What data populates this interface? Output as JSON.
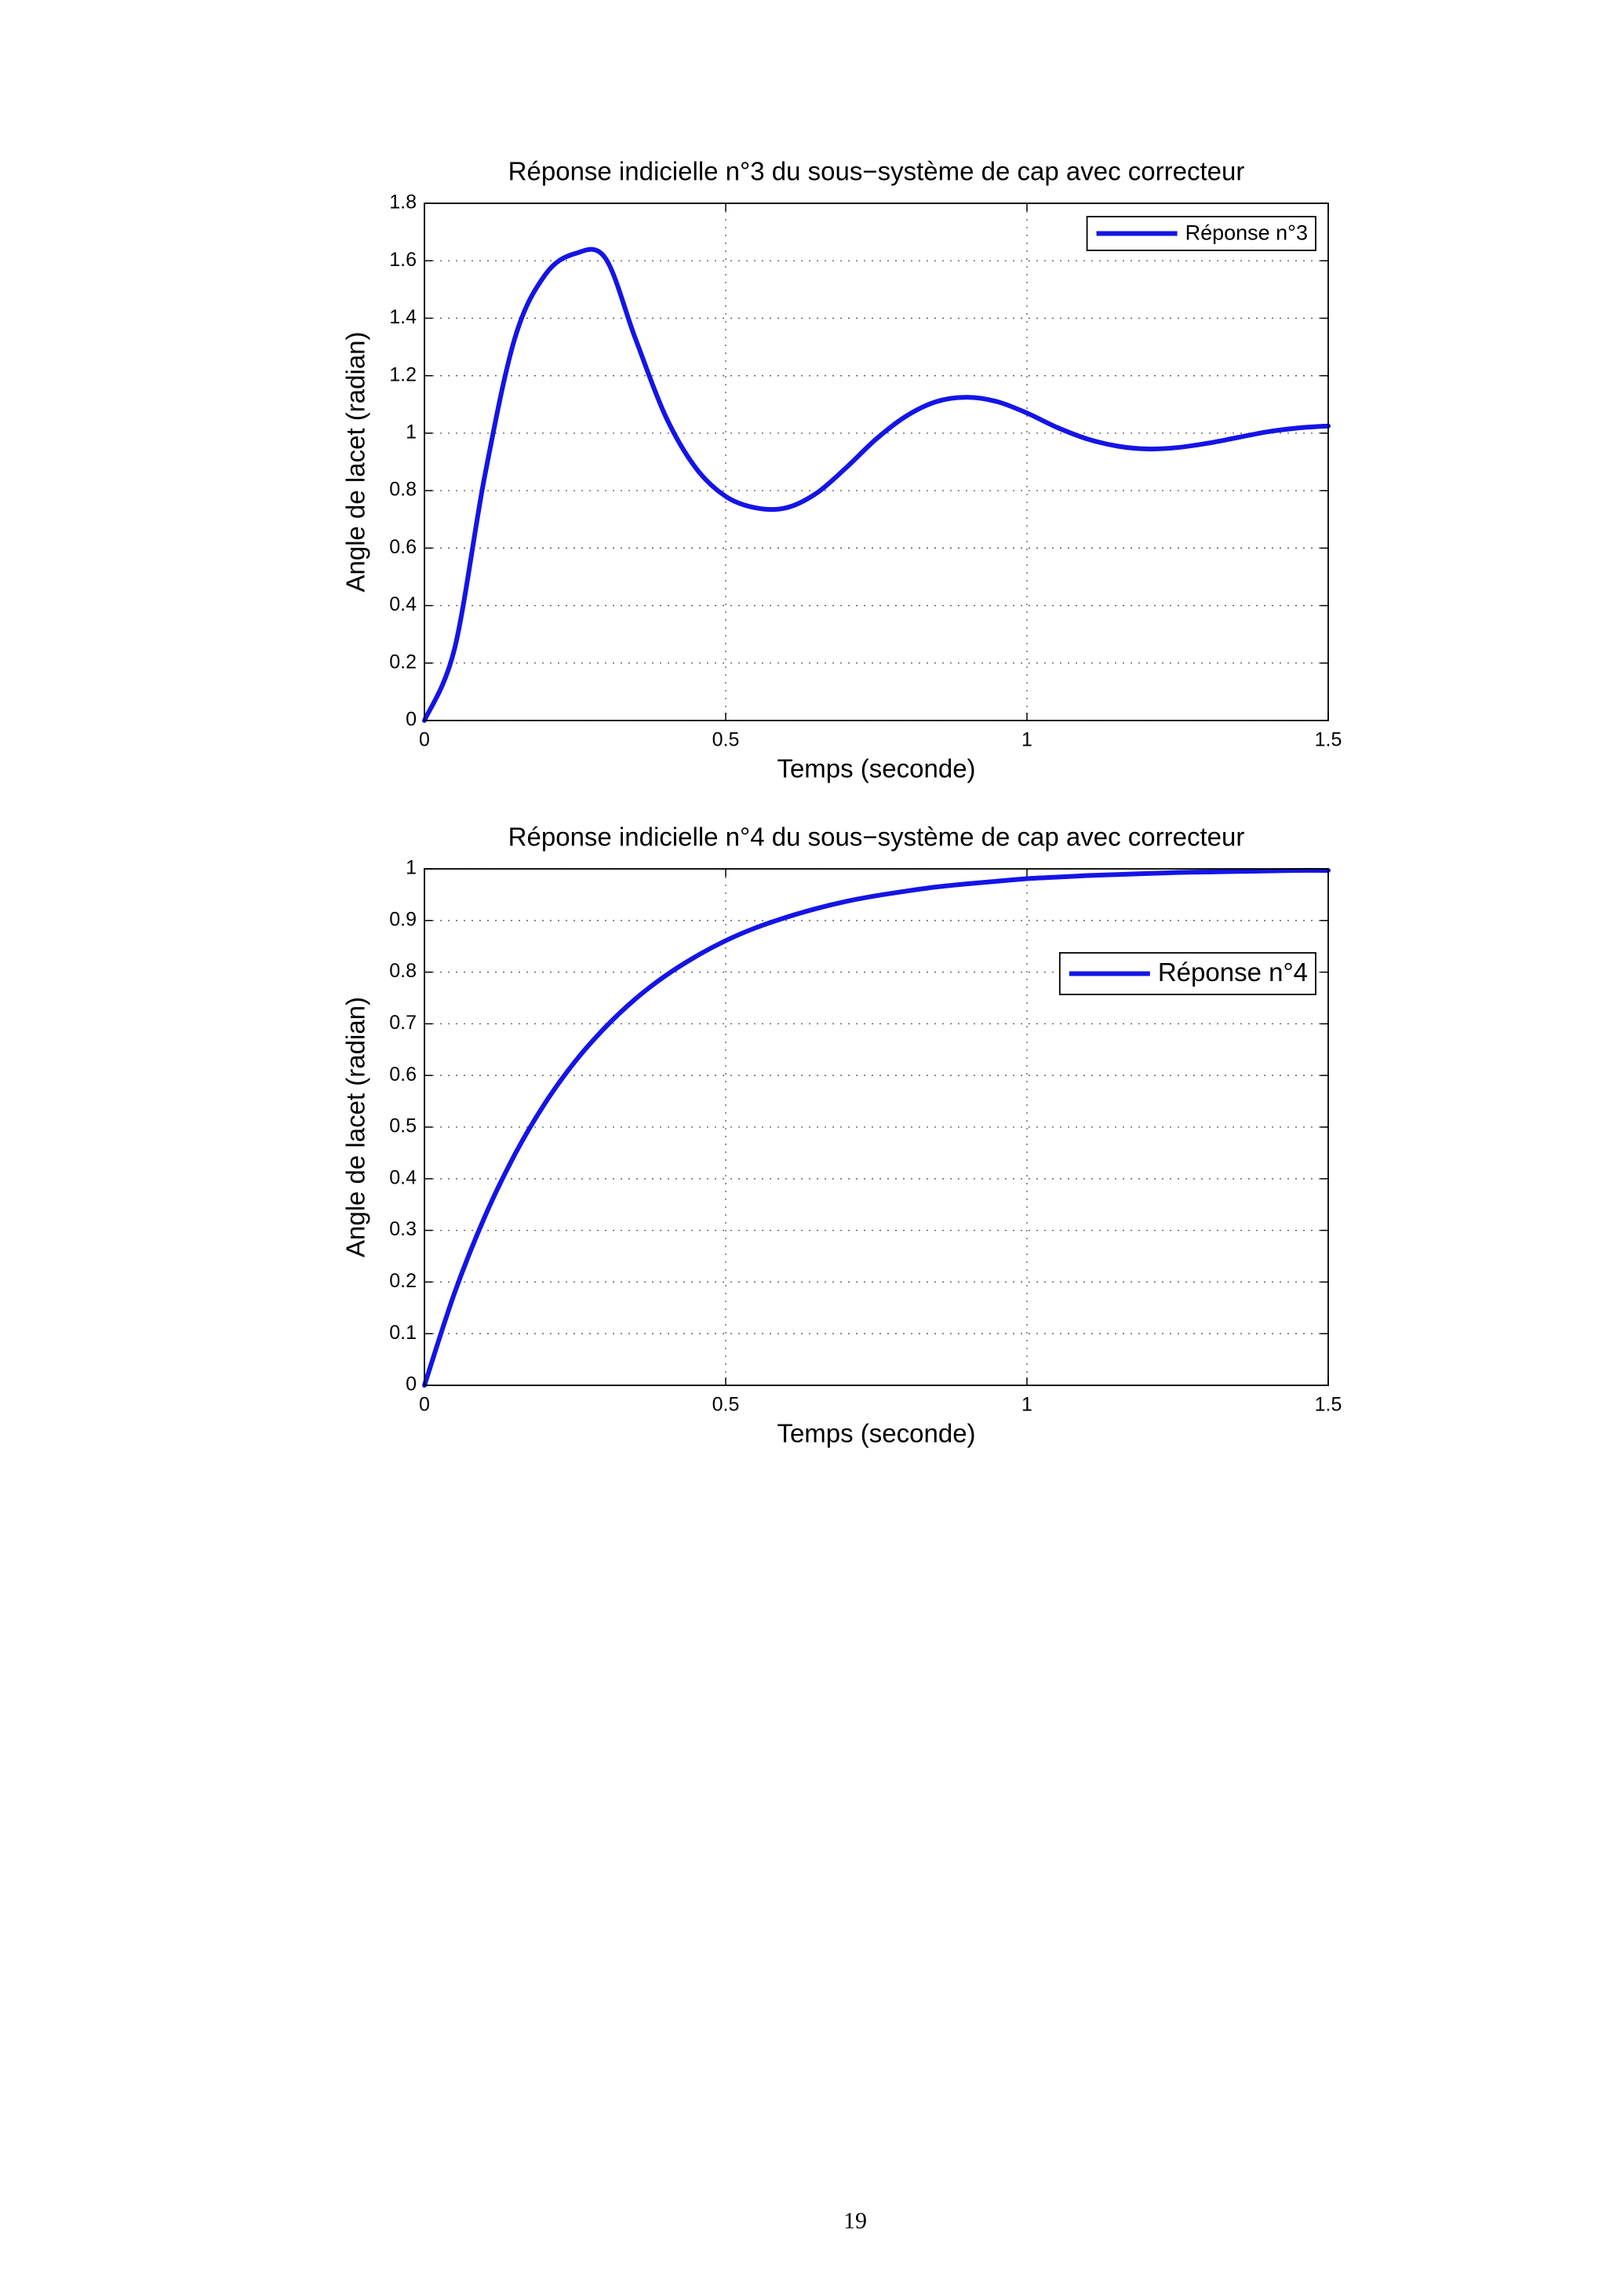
{
  "chart_data": [
    {
      "type": "line",
      "title": "Réponse indicielle n°3 du sous−système de cap avec correcteur",
      "xlabel": "Temps (seconde)",
      "ylabel": "Angle de lacet (radian)",
      "x": [
        0,
        0.05,
        0.1,
        0.15,
        0.2,
        0.25,
        0.3,
        0.35,
        0.4,
        0.45,
        0.5,
        0.55,
        0.6,
        0.65,
        0.7,
        0.75,
        0.8,
        0.85,
        0.9,
        0.95,
        1.0,
        1.05,
        1.1,
        1.15,
        1.2,
        1.25,
        1.3,
        1.35,
        1.4,
        1.45,
        1.5
      ],
      "series": [
        {
          "name": "Réponse n°3",
          "color": "#1414e6",
          "values": [
            0,
            0.25,
            0.85,
            1.33,
            1.55,
            1.625,
            1.61,
            1.33,
            1.06,
            0.88,
            0.78,
            0.74,
            0.74,
            0.79,
            0.88,
            0.98,
            1.06,
            1.11,
            1.125,
            1.11,
            1.07,
            1.02,
            0.98,
            0.955,
            0.945,
            0.95,
            0.965,
            0.985,
            1.005,
            1.018,
            1.025
          ]
        }
      ],
      "xlim": [
        0,
        1.5
      ],
      "ylim": [
        0,
        1.8
      ],
      "xticks": [
        0,
        0.5,
        1,
        1.5
      ],
      "yticks": [
        0,
        0.2,
        0.4,
        0.6,
        0.8,
        1,
        1.2,
        1.4,
        1.6,
        1.8
      ],
      "grid": true,
      "legend": "upper right"
    },
    {
      "type": "line",
      "title": "Réponse indicielle n°4 du sous−système de cap avec correcteur",
      "xlabel": "Temps (seconde)",
      "ylabel": "Angle de lacet (radian)",
      "x": [
        0,
        0.05,
        0.1,
        0.15,
        0.2,
        0.25,
        0.3,
        0.35,
        0.4,
        0.45,
        0.5,
        0.55,
        0.6,
        0.65,
        0.7,
        0.75,
        0.8,
        0.85,
        0.9,
        0.95,
        1.0,
        1.05,
        1.1,
        1.15,
        1.2,
        1.25,
        1.3,
        1.35,
        1.4,
        1.45,
        1.5
      ],
      "series": [
        {
          "name": "Réponse n°4",
          "color": "#1414e6",
          "values": [
            0,
            0.179,
            0.326,
            0.447,
            0.546,
            0.627,
            0.693,
            0.748,
            0.793,
            0.83,
            0.861,
            0.886,
            0.906,
            0.923,
            0.937,
            0.948,
            0.957,
            0.965,
            0.971,
            0.976,
            0.981,
            0.984,
            0.987,
            0.989,
            0.991,
            0.993,
            0.994,
            0.995,
            0.996,
            0.997,
            0.997
          ]
        }
      ],
      "xlim": [
        0,
        1.5
      ],
      "ylim": [
        0,
        1
      ],
      "xticks": [
        0,
        0.5,
        1,
        1.5
      ],
      "yticks": [
        0,
        0.1,
        0.2,
        0.3,
        0.4,
        0.5,
        0.6,
        0.7,
        0.8,
        0.9,
        1
      ],
      "grid": true,
      "legend": "right"
    }
  ],
  "page_number": "19"
}
